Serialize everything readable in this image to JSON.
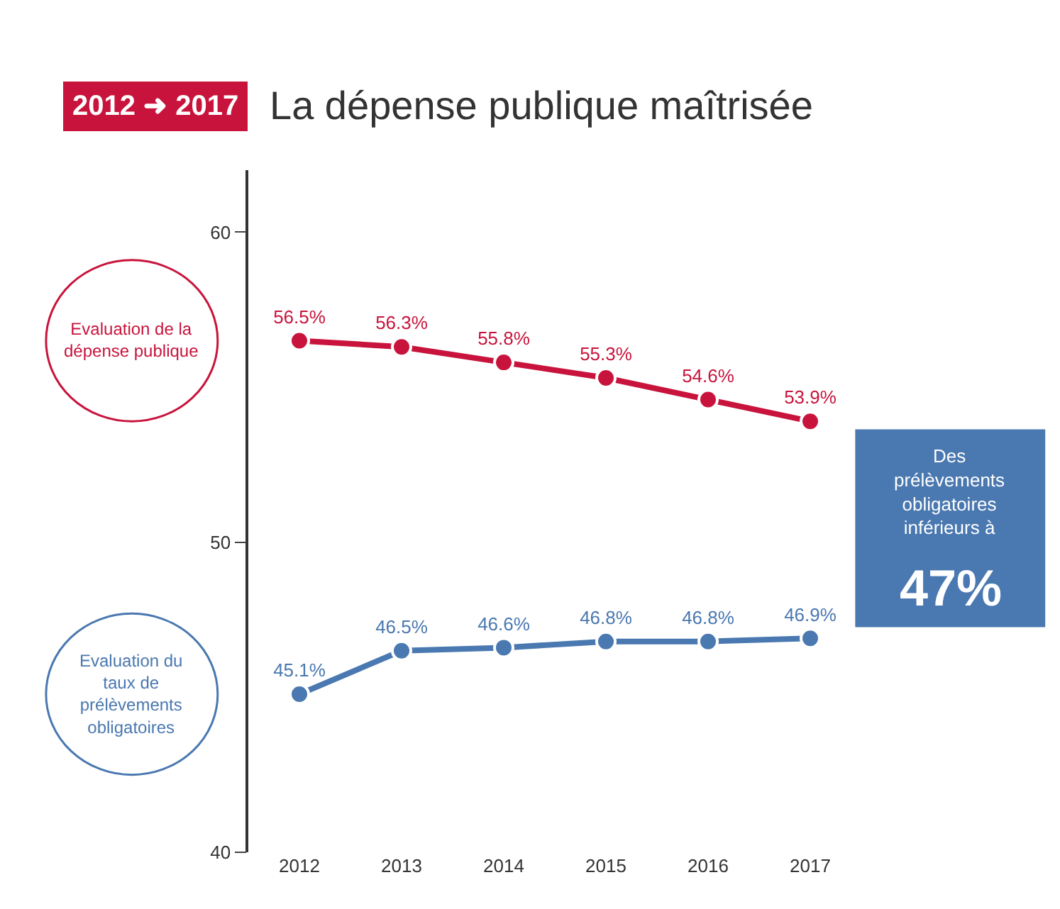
{
  "chart_data": {
    "type": "line",
    "title": "La dépense publique maîtrisée",
    "subtitle": "2012 ➜ 2017",
    "categories": [
      "2012",
      "2013",
      "2014",
      "2015",
      "2016",
      "2017"
    ],
    "series": [
      {
        "name": "Evaluation de la dépense publique",
        "color": "#c8143c",
        "values": [
          56.5,
          56.3,
          55.8,
          55.3,
          54.6,
          53.9
        ],
        "value_labels": [
          "56.5%",
          "56.3%",
          "55.8%",
          "55.3%",
          "54.6%",
          "53.9%"
        ]
      },
      {
        "name": "Evaluation du taux de prélèvements obligatoires",
        "color": "#4a78b0",
        "values": [
          45.1,
          46.5,
          46.6,
          46.8,
          46.8,
          46.9
        ],
        "value_labels": [
          "45.1%",
          "46.5%",
          "46.6%",
          "46.8%",
          "46.8%",
          "46.9%"
        ]
      }
    ],
    "ylim": [
      40,
      62
    ],
    "yticks": [
      40,
      50,
      60
    ],
    "legend": false,
    "marker": "circle",
    "line_style": "solid",
    "annotations": [
      "Des prélèvements obligatoires inférieurs à",
      "47%"
    ]
  }
}
